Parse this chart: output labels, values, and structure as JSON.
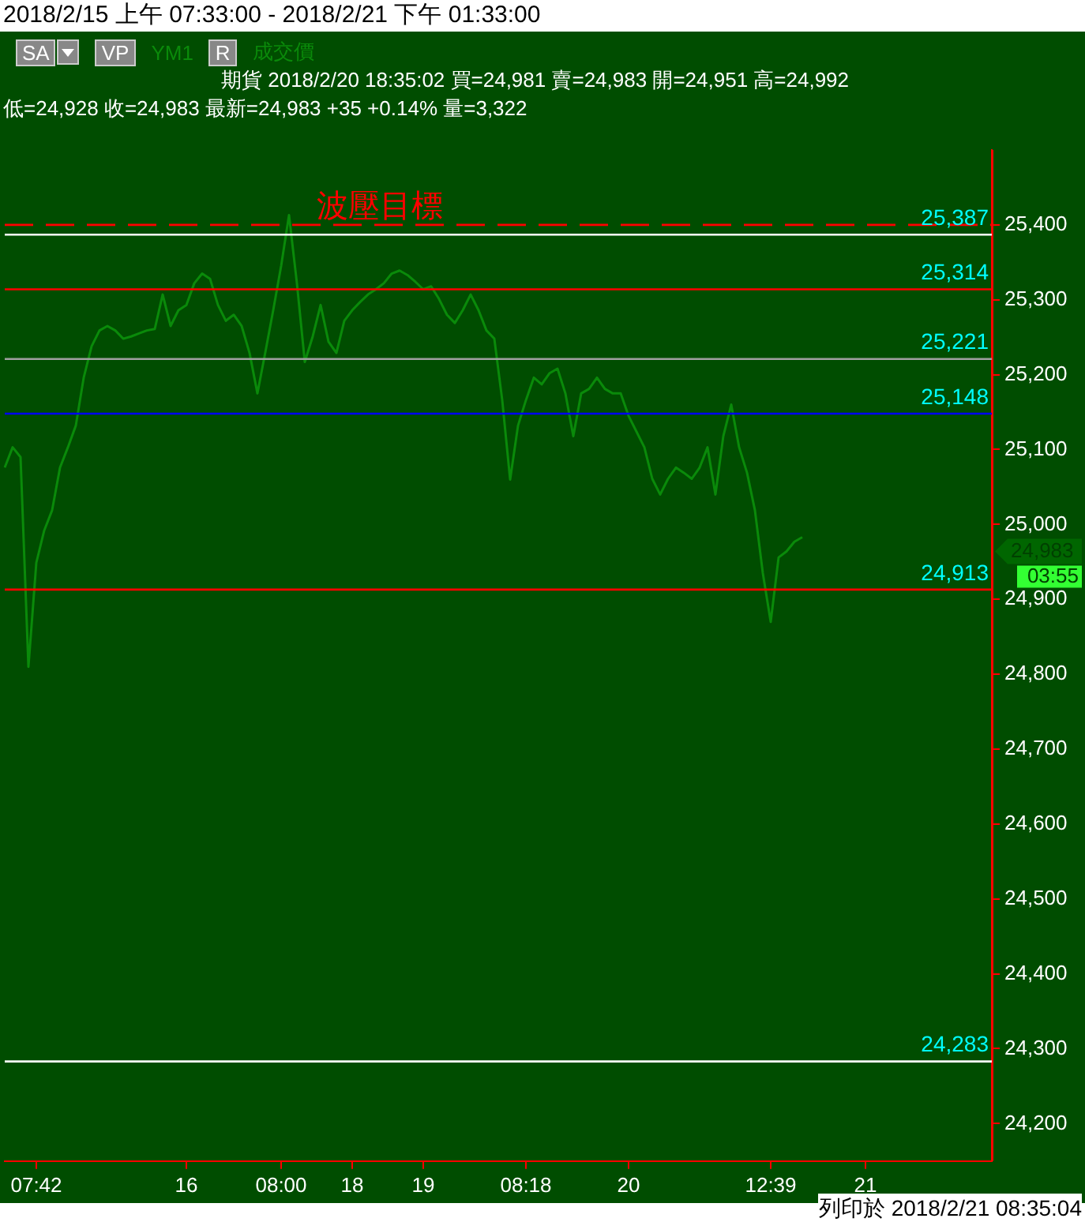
{
  "chart_data": {
    "type": "line",
    "title": "2018/2/15 上午 07:33:00 - 2018/2/21 下午 01:33:00",
    "categories": [
      null,
      null,
      null,
      null,
      "07:42",
      null,
      null,
      null,
      null,
      null,
      null,
      null,
      null,
      null,
      null,
      null,
      null,
      null,
      null,
      null,
      null,
      null,
      null,
      "16",
      null,
      null,
      null,
      null,
      null,
      null,
      null,
      null,
      null,
      null,
      null,
      "08:00",
      null,
      null,
      null,
      null,
      null,
      null,
      null,
      null,
      "18",
      null,
      null,
      null,
      null,
      null,
      null,
      null,
      null,
      "19",
      null,
      null,
      null,
      null,
      null,
      null,
      null,
      null,
      null,
      null,
      null,
      null,
      "08:18",
      null,
      null,
      null,
      null,
      null,
      null,
      null,
      null,
      null,
      null,
      null,
      null,
      "20",
      null,
      null,
      null,
      null,
      null,
      null,
      null,
      null,
      null,
      null,
      null,
      null,
      null,
      null,
      null,
      null,
      null,
      "12:39",
      null,
      null,
      null,
      null,
      null,
      null,
      null,
      null,
      null,
      null,
      null,
      "21",
      null,
      null,
      null,
      null,
      null,
      null,
      null,
      null,
      null,
      null,
      null,
      null,
      null,
      null,
      null,
      null
    ],
    "series": [
      {
        "color": "#0a8a0a",
        "values": [
          25076,
          25103,
          25090,
          24810,
          24949,
          24992,
          25019,
          25076,
          25103,
          25132,
          25196,
          25238,
          25259,
          25265,
          25259,
          25248,
          25251,
          25255,
          25259,
          25261,
          25307,
          25265,
          25286,
          25293,
          25322,
          25335,
          25328,
          25293,
          25272,
          25280,
          25265,
          25229,
          25175,
          25230,
          25286,
          25345,
          25413,
          25322,
          25217,
          25251,
          25293,
          25244,
          25229,
          25272,
          25286,
          25297,
          25307,
          25314,
          25322,
          25335,
          25339,
          25333,
          25324,
          25314,
          25318,
          25301,
          25280,
          25269,
          25286,
          25307,
          25286,
          25259,
          25248,
          25166,
          25060,
          25132,
          25166,
          25196,
          25187,
          25202,
          25208,
          25175,
          25118,
          25175,
          25181,
          25196,
          25181,
          25175,
          25175,
          25145,
          25124,
          25103,
          25061,
          25040,
          25061,
          25076,
          25069,
          25061,
          25076,
          25103,
          25040,
          25118,
          25160,
          25103,
          25069,
          25019,
          24935,
          24870,
          24956,
          24964,
          24977,
          24983,
          null,
          null,
          null,
          null,
          null,
          null,
          null,
          null,
          null,
          null,
          null,
          null,
          null,
          null,
          null,
          null,
          null,
          null,
          null,
          null,
          null,
          null,
          null,
          null
        ]
      }
    ],
    "ylim": [
      24150,
      25500
    ],
    "yticks": [
      {
        "value": 24200,
        "label": "24,200"
      },
      {
        "value": 24300,
        "label": "24,300"
      },
      {
        "value": 24400,
        "label": "24,400"
      },
      {
        "value": 24500,
        "label": "24,500"
      },
      {
        "value": 24600,
        "label": "24,600"
      },
      {
        "value": 24700,
        "label": "24,700"
      },
      {
        "value": 24800,
        "label": "24,800"
      },
      {
        "value": 24900,
        "label": "24,900"
      },
      {
        "value": 25000,
        "label": "25,000"
      },
      {
        "value": 25100,
        "label": "25,100"
      },
      {
        "value": 25200,
        "label": "25,200"
      },
      {
        "value": 25300,
        "label": "25,300"
      },
      {
        "value": 25400,
        "label": "25,400"
      }
    ],
    "marker": "none",
    "line_style": "solid",
    "grid": false,
    "legend": false,
    "ref_lines": [
      {
        "axis": "y",
        "value": 25400,
        "label": "波壓目標",
        "color": "#ff0000",
        "line_style": "dashed"
      },
      {
        "axis": "y",
        "value": 25387,
        "label": "25,387",
        "color": "#ffffff"
      },
      {
        "axis": "y",
        "value": 25314,
        "label": "25,314",
        "color": "#ff0000"
      },
      {
        "axis": "y",
        "value": 25221,
        "label": "25,221",
        "color": "#a0a0a0"
      },
      {
        "axis": "y",
        "value": 25148,
        "label": "25,148",
        "color": "#0000ff"
      },
      {
        "axis": "y",
        "value": 24913,
        "label": "24,913",
        "color": "#ff0000"
      },
      {
        "axis": "y",
        "value": 24283,
        "label": "24,283",
        "color": "#ffffff"
      }
    ],
    "annotations": [
      "SA",
      "VP",
      "YM1",
      "R",
      "成交價",
      "期貨 2018/2/20 18:35:02 買=24,981 賣=24,983 開=24,951 高=24,992",
      "低=24,928 收=24,983 最新=24,983 +35 +0.14% 量=3,322",
      "24,983",
      "03:55",
      "列印於 2018/2/21 08:35:04"
    ]
  }
}
